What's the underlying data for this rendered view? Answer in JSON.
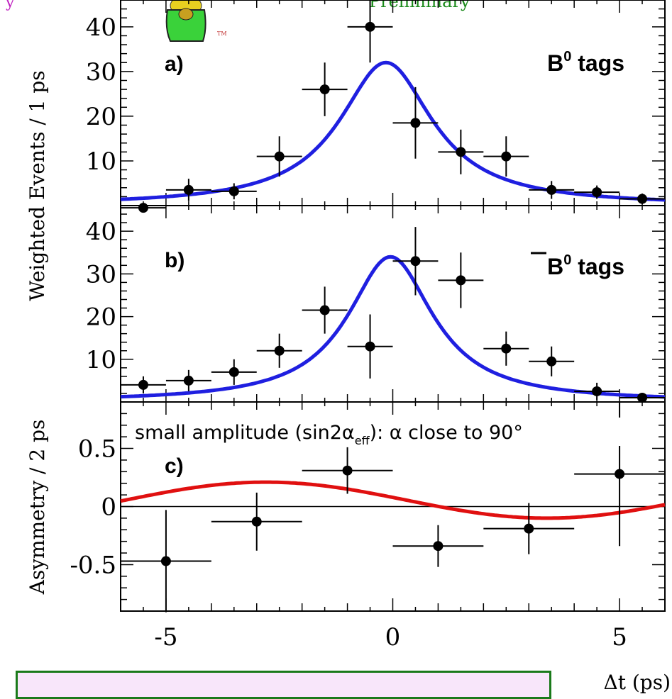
{
  "header": {
    "banner_fragment": "Preliminary"
  },
  "y_axis_label_top": "Weighted  Events / 1 ps",
  "y_axis_label_bottom": "Asymmetry / 2 ps",
  "x_axis_label": "Δt (ps)",
  "colors": {
    "fit_curve": "#1f1fe0",
    "asym_curve": "#e01010",
    "points": "#000000",
    "header_text": "#1a8a1a",
    "box_border": "#1a7a1a",
    "box_fill": "#f8e6fa"
  },
  "chart_data": [
    {
      "type": "scatter",
      "panel_label": "a)",
      "tag_label": "B",
      "tag_superscript": "0",
      "tag_suffix": " tags",
      "tag_bar": false,
      "ylim": [
        0,
        46
      ],
      "yticks": [
        "10",
        "20",
        "30",
        "40"
      ],
      "xlim": [
        -6,
        6
      ],
      "points": [
        {
          "x": -5.5,
          "y": -0.5,
          "xerr": 0.5,
          "yerr": 0.6
        },
        {
          "x": -4.5,
          "y": 3.5,
          "xerr": 0.5,
          "yerr": 2.5
        },
        {
          "x": -3.5,
          "y": 3.2,
          "xerr": 0.5,
          "yerr": 1.8
        },
        {
          "x": -2.5,
          "y": 11.0,
          "xerr": 0.5,
          "yerr": 4.5
        },
        {
          "x": -1.5,
          "y": 26.0,
          "xerr": 0.5,
          "yerr": 6.0
        },
        {
          "x": -0.5,
          "y": 40.0,
          "xerr": 0.5,
          "yerr": 8.0
        },
        {
          "x": 0.5,
          "y": 18.5,
          "xerr": 0.5,
          "yerr": 8.0
        },
        {
          "x": 1.5,
          "y": 12.0,
          "xerr": 0.5,
          "yerr": 5.0
        },
        {
          "x": 2.5,
          "y": 11.0,
          "xerr": 0.5,
          "yerr": 4.5
        },
        {
          "x": 3.5,
          "y": 3.5,
          "xerr": 0.5,
          "yerr": 2.0
        },
        {
          "x": 4.5,
          "y": 3.0,
          "xerr": 0.5,
          "yerr": 1.5
        },
        {
          "x": 5.5,
          "y": 1.5,
          "xerr": 0.5,
          "yerr": 1.2
        }
      ],
      "fit": {
        "peak": 32,
        "mu": -0.15,
        "gamma": 1.25
      }
    },
    {
      "type": "scatter",
      "panel_label": "b)",
      "tag_label": "B",
      "tag_superscript": "0",
      "tag_suffix": " tags",
      "tag_bar": true,
      "ylim": [
        0,
        46
      ],
      "yticks": [
        "10",
        "20",
        "30",
        "40"
      ],
      "xlim": [
        -6,
        6
      ],
      "points": [
        {
          "x": -5.5,
          "y": 4.0,
          "xerr": 0.5,
          "yerr": 2.0
        },
        {
          "x": -4.5,
          "y": 5.0,
          "xerr": 0.5,
          "yerr": 2.5
        },
        {
          "x": -3.5,
          "y": 7.0,
          "xerr": 0.5,
          "yerr": 3.0
        },
        {
          "x": -2.5,
          "y": 12.0,
          "xerr": 0.5,
          "yerr": 4.0
        },
        {
          "x": -1.5,
          "y": 21.5,
          "xerr": 0.5,
          "yerr": 5.5
        },
        {
          "x": -0.5,
          "y": 13.0,
          "xerr": 0.5,
          "yerr": 7.5
        },
        {
          "x": 0.5,
          "y": 33.0,
          "xerr": 0.5,
          "yerr": 8.0
        },
        {
          "x": 1.5,
          "y": 28.5,
          "xerr": 0.5,
          "yerr": 6.5
        },
        {
          "x": 2.5,
          "y": 12.5,
          "xerr": 0.5,
          "yerr": 4.0
        },
        {
          "x": 3.5,
          "y": 9.5,
          "xerr": 0.5,
          "yerr": 3.5
        },
        {
          "x": 4.5,
          "y": 2.5,
          "xerr": 0.5,
          "yerr": 2.0
        },
        {
          "x": 5.5,
          "y": 1.0,
          "xerr": 0.5,
          "yerr": 1.0
        }
      ],
      "fit": {
        "peak": 34,
        "mu": -0.05,
        "gamma": 1.15
      }
    },
    {
      "type": "scatter",
      "panel_label": "c)",
      "annotation": "small amplitude (sin2α",
      "annotation_sub": "eff",
      "annotation_tail": "): α close to 90°",
      "ylim": [
        -0.9,
        0.9
      ],
      "yticks": [
        "-0.5",
        "0",
        "0.5"
      ],
      "ytick_values": [
        -0.5,
        0,
        0.5
      ],
      "xlim": [
        -6,
        6
      ],
      "xticks": [
        "-5",
        "0",
        "5"
      ],
      "xtick_values": [
        -5,
        0,
        5
      ],
      "points": [
        {
          "x": -5,
          "y": -0.47,
          "xerr": 1,
          "yerr": 0.44
        },
        {
          "x": -3,
          "y": -0.13,
          "xerr": 1,
          "yerr": 0.25
        },
        {
          "x": -1,
          "y": 0.31,
          "xerr": 1,
          "yerr": 0.2
        },
        {
          "x": 1,
          "y": -0.34,
          "xerr": 1,
          "yerr": 0.18
        },
        {
          "x": 3,
          "y": -0.19,
          "xerr": 1,
          "yerr": 0.22
        },
        {
          "x": 5,
          "y": 0.28,
          "xerr": 1,
          "yerr": 0.62
        }
      ],
      "fit": {
        "amp": 0.165,
        "omega": 0.9,
        "phase": 0.62,
        "offset": 0.04
      }
    }
  ]
}
